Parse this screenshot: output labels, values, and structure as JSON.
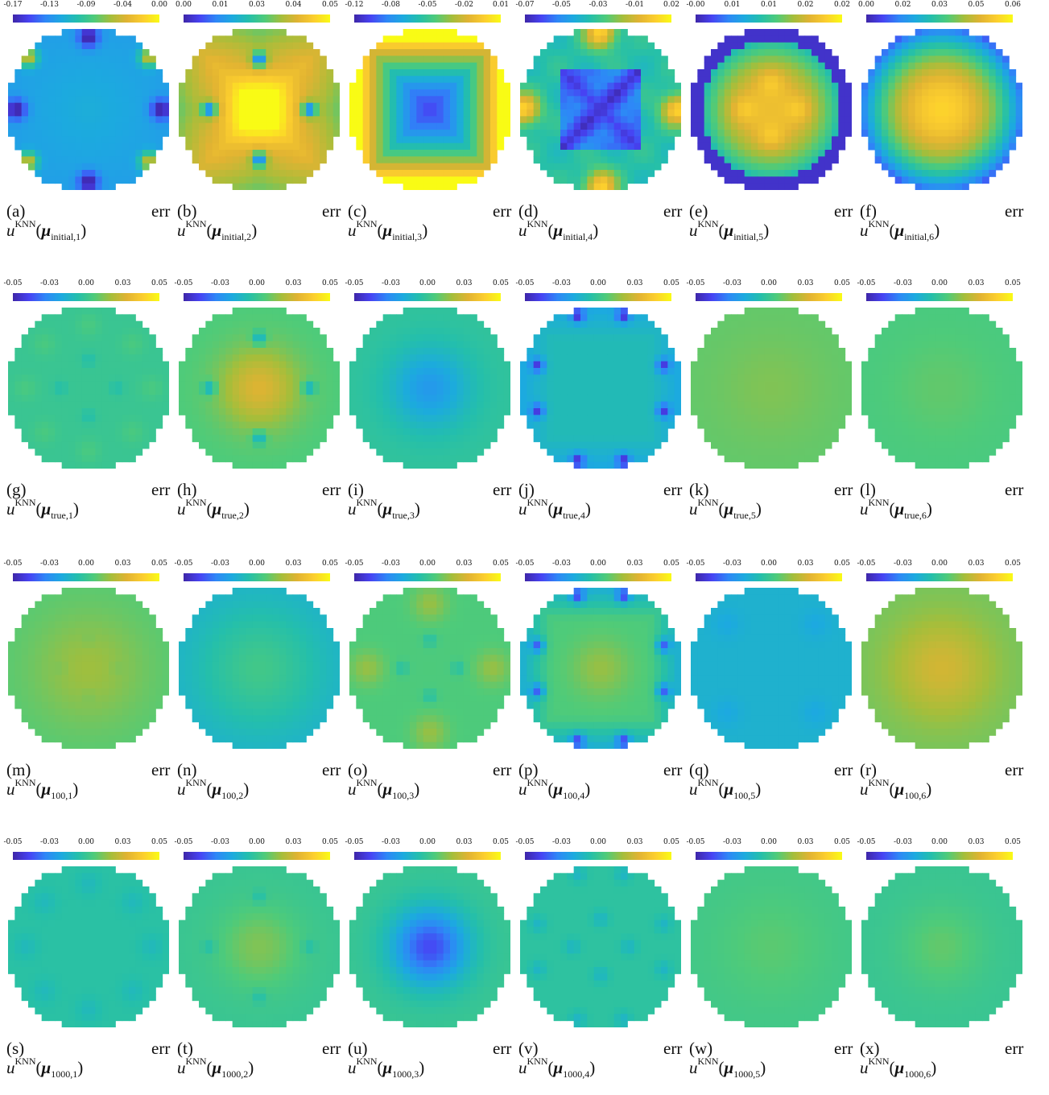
{
  "figure": {
    "rows": [
      {
        "panels": [
          {
            "ticks": [
              "-0.17",
              "-0.13",
              "-0.09",
              "-0.04",
              "0.00"
            ],
            "pattern": "r0p0"
          },
          {
            "ticks": [
              "0.00",
              "0.01",
              "0.03",
              "0.04",
              "0.05"
            ],
            "pattern": "r0p1"
          },
          {
            "ticks": [
              "-0.12",
              "-0.08",
              "-0.05",
              "-0.02",
              "0.01"
            ],
            "pattern": "r0p2"
          },
          {
            "ticks": [
              "-0.07",
              "-0.05",
              "-0.03",
              "-0.01",
              "0.02"
            ],
            "pattern": "r0p3"
          },
          {
            "ticks": [
              "-0.00",
              "0.01",
              "0.01",
              "0.02",
              "0.02"
            ],
            "pattern": "r0p4"
          },
          {
            "ticks": [
              "0.00",
              "0.02",
              "0.03",
              "0.05",
              "0.06"
            ],
            "pattern": "r0p5"
          }
        ],
        "captions": [
          {
            "tag": "(a)",
            "err": "err",
            "sub": "initial,1"
          },
          {
            "tag": "(b)",
            "err": "err",
            "sub": "initial,2"
          },
          {
            "tag": "(c)",
            "err": "err",
            "sub": "initial,3"
          },
          {
            "tag": "(d)",
            "err": "err",
            "sub": "initial,4"
          },
          {
            "tag": "(e)",
            "err": "err",
            "sub": "initial,5"
          },
          {
            "tag": "(f)",
            "err": "err",
            "sub": "initial,6"
          }
        ]
      },
      {
        "panels": [
          {
            "ticks": [
              "-0.05",
              "-0.03",
              "0.00",
              "0.03",
              "0.05"
            ],
            "pattern": "r1p0"
          },
          {
            "ticks": [
              "-0.05",
              "-0.03",
              "0.00",
              "0.03",
              "0.05"
            ],
            "pattern": "r1p1"
          },
          {
            "ticks": [
              "-0.05",
              "-0.03",
              "0.00",
              "0.03",
              "0.05"
            ],
            "pattern": "r1p2"
          },
          {
            "ticks": [
              "-0.05",
              "-0.03",
              "0.00",
              "0.03",
              "0.05"
            ],
            "pattern": "r1p3"
          },
          {
            "ticks": [
              "-0.05",
              "-0.03",
              "0.00",
              "0.03",
              "0.05"
            ],
            "pattern": "r1p4"
          },
          {
            "ticks": [
              "-0.05",
              "-0.03",
              "0.00",
              "0.03",
              "0.05"
            ],
            "pattern": "r1p5"
          }
        ],
        "captions": [
          {
            "tag": "(g)",
            "err": "err",
            "sub": "true,1"
          },
          {
            "tag": "(h)",
            "err": "err",
            "sub": "true,2"
          },
          {
            "tag": "(i)",
            "err": "err",
            "sub": "true,3"
          },
          {
            "tag": "(j)",
            "err": "err",
            "sub": "true,4"
          },
          {
            "tag": "(k)",
            "err": "err",
            "sub": "true,5"
          },
          {
            "tag": "(l)",
            "err": "err",
            "sub": "true,6"
          }
        ]
      },
      {
        "panels": [
          {
            "ticks": [
              "-0.05",
              "-0.03",
              "0.00",
              "0.03",
              "0.05"
            ],
            "pattern": "r2p0"
          },
          {
            "ticks": [
              "-0.05",
              "-0.03",
              "0.00",
              "0.03",
              "0.05"
            ],
            "pattern": "r2p1"
          },
          {
            "ticks": [
              "-0.05",
              "-0.03",
              "0.00",
              "0.03",
              "0.05"
            ],
            "pattern": "r2p2"
          },
          {
            "ticks": [
              "-0.05",
              "-0.03",
              "0.00",
              "0.03",
              "0.05"
            ],
            "pattern": "r2p3"
          },
          {
            "ticks": [
              "-0.05",
              "-0.03",
              "0.00",
              "0.03",
              "0.05"
            ],
            "pattern": "r2p4"
          },
          {
            "ticks": [
              "-0.05",
              "-0.03",
              "0.00",
              "0.03",
              "0.05"
            ],
            "pattern": "r2p5"
          }
        ],
        "captions": [
          {
            "tag": "(m)",
            "err": "err",
            "sub": "100,1"
          },
          {
            "tag": "(n)",
            "err": "err",
            "sub": "100,2"
          },
          {
            "tag": "(o)",
            "err": "err",
            "sub": "100,3"
          },
          {
            "tag": "(p)",
            "err": "err",
            "sub": "100,4"
          },
          {
            "tag": "(q)",
            "err": "err",
            "sub": "100,5"
          },
          {
            "tag": "(r)",
            "err": "err",
            "sub": "100,6"
          }
        ]
      },
      {
        "panels": [
          {
            "ticks": [
              "-0.05",
              "-0.03",
              "0.00",
              "0.03",
              "0.05"
            ],
            "pattern": "r3p0"
          },
          {
            "ticks": [
              "-0.05",
              "-0.03",
              "0.00",
              "0.03",
              "0.05"
            ],
            "pattern": "r3p1"
          },
          {
            "ticks": [
              "-0.05",
              "-0.03",
              "0.00",
              "0.03",
              "0.05"
            ],
            "pattern": "r3p2"
          },
          {
            "ticks": [
              "-0.05",
              "-0.03",
              "0.00",
              "0.03",
              "0.05"
            ],
            "pattern": "r3p3"
          },
          {
            "ticks": [
              "-0.05",
              "-0.03",
              "0.00",
              "0.03",
              "0.05"
            ],
            "pattern": "r3p4"
          },
          {
            "ticks": [
              "-0.05",
              "-0.03",
              "0.00",
              "0.03",
              "0.05"
            ],
            "pattern": "r3p5"
          }
        ],
        "captions": [
          {
            "tag": "(s)",
            "err": "err",
            "sub": "1000,1"
          },
          {
            "tag": "(t)",
            "err": "err",
            "sub": "1000,2"
          },
          {
            "tag": "(u)",
            "err": "err",
            "sub": "1000,3"
          },
          {
            "tag": "(v)",
            "err": "err",
            "sub": "1000,4"
          },
          {
            "tag": "(w)",
            "err": "err",
            "sub": "1000,5"
          },
          {
            "tag": "(x)",
            "err": "err",
            "sub": "1000,6"
          }
        ]
      }
    ],
    "caption_symbols": {
      "u": "u",
      "sup": "KNN",
      "mu": "μ",
      "open": "(",
      "close": ")"
    },
    "colormap": [
      "#3e26a8",
      "#4743f3",
      "#2e87f7",
      "#1caadf",
      "#24bfab",
      "#4fcb79",
      "#a4be3b",
      "#e1b332",
      "#fcce2e",
      "#f9fb15"
    ]
  }
}
